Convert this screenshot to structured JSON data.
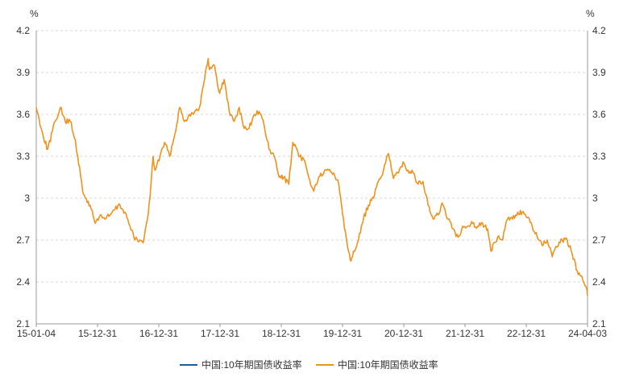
{
  "chart_data": {
    "type": "line",
    "title": "",
    "left_unit": "%",
    "right_unit": "%",
    "x_tick_labels": [
      "15-01-04",
      "15-12-31",
      "16-12-31",
      "17-12-31",
      "18-12-31",
      "19-12-31",
      "20-12-31",
      "21-12-31",
      "22-12-31",
      "24-04-03"
    ],
    "ylim": [
      2.1,
      4.2
    ],
    "y_tick_labels": [
      "2.1",
      "2.4",
      "2.7",
      "3",
      "3.3",
      "3.6",
      "3.9",
      "4.2"
    ],
    "grid": "horizontal dashed",
    "legend_position": "bottom-center",
    "legend": [
      {
        "label": "中国:10年期国债收益率",
        "color": "#1f5fa0"
      },
      {
        "label": "中国:10年期国债收益率",
        "color": "#f0921e"
      }
    ],
    "series": [
      {
        "name": "中国:10年期国债收益率",
        "color": "#f0921e",
        "x": [
          "2015-01-04",
          "2015-02-15",
          "2015-03-15",
          "2015-04-30",
          "2015-05-31",
          "2015-06-30",
          "2015-07-31",
          "2015-08-31",
          "2015-09-15",
          "2015-10-15",
          "2015-10-31",
          "2015-11-30",
          "2015-12-31",
          "2016-01-31",
          "2016-02-29",
          "2016-03-31",
          "2016-04-30",
          "2016-05-31",
          "2016-06-30",
          "2016-07-31",
          "2016-08-31",
          "2016-09-30",
          "2016-10-20",
          "2016-11-15",
          "2016-11-30",
          "2016-12-20",
          "2016-12-31",
          "2017-01-31",
          "2017-02-28",
          "2017-03-31",
          "2017-04-30",
          "2017-05-31",
          "2017-06-30",
          "2017-07-31",
          "2017-08-31",
          "2017-09-30",
          "2017-10-31",
          "2017-11-22",
          "2017-11-30",
          "2017-12-31",
          "2018-01-31",
          "2018-02-28",
          "2018-03-31",
          "2018-04-30",
          "2018-05-31",
          "2018-06-30",
          "2018-07-31",
          "2018-08-31",
          "2018-09-30",
          "2018-10-31",
          "2018-11-30",
          "2018-12-31",
          "2019-01-31",
          "2019-02-28",
          "2019-03-31",
          "2019-04-25",
          "2019-05-31",
          "2019-06-30",
          "2019-07-31",
          "2019-08-31",
          "2019-09-30",
          "2019-10-31",
          "2019-11-30",
          "2019-12-31",
          "2020-01-31",
          "2020-02-29",
          "2020-03-31",
          "2020-04-15",
          "2020-04-30",
          "2020-05-31",
          "2020-06-30",
          "2020-07-31",
          "2020-08-31",
          "2020-09-30",
          "2020-10-31",
          "2020-11-20",
          "2020-11-30",
          "2020-12-31",
          "2021-01-31",
          "2021-02-28",
          "2021-03-31",
          "2021-04-30",
          "2021-05-31",
          "2021-06-30",
          "2021-07-31",
          "2021-08-31",
          "2021-09-30",
          "2021-10-20",
          "2021-10-31",
          "2021-11-30",
          "2021-12-31",
          "2022-01-31",
          "2022-02-28",
          "2022-03-31",
          "2022-04-30",
          "2022-05-31",
          "2022-06-30",
          "2022-07-31",
          "2022-08-20",
          "2022-09-30",
          "2022-10-31",
          "2022-11-20",
          "2022-11-30",
          "2022-12-31",
          "2023-01-31",
          "2023-02-28",
          "2023-03-31",
          "2023-04-30",
          "2023-05-31",
          "2023-06-30",
          "2023-07-31",
          "2023-08-31",
          "2023-09-30",
          "2023-10-31",
          "2023-11-30",
          "2023-12-31",
          "2024-01-31",
          "2024-02-29",
          "2024-03-31",
          "2024-04-03"
        ],
        "y": [
          3.65,
          3.45,
          3.35,
          3.55,
          3.65,
          3.55,
          3.55,
          3.42,
          3.3,
          3.05,
          3.0,
          2.95,
          2.82,
          2.88,
          2.85,
          2.88,
          2.92,
          2.95,
          2.9,
          2.8,
          2.7,
          2.7,
          2.68,
          2.85,
          3.0,
          3.3,
          3.2,
          3.3,
          3.4,
          3.3,
          3.45,
          3.65,
          3.55,
          3.6,
          3.62,
          3.65,
          3.85,
          4.0,
          3.92,
          3.95,
          3.75,
          3.85,
          3.62,
          3.55,
          3.65,
          3.5,
          3.5,
          3.6,
          3.62,
          3.52,
          3.35,
          3.3,
          3.15,
          3.15,
          3.1,
          3.4,
          3.3,
          3.28,
          3.15,
          3.05,
          3.15,
          3.18,
          3.2,
          3.18,
          3.1,
          2.85,
          2.62,
          2.55,
          2.62,
          2.7,
          2.85,
          2.95,
          3.0,
          3.12,
          3.2,
          3.3,
          3.32,
          3.14,
          3.18,
          3.26,
          3.2,
          3.18,
          3.1,
          3.12,
          2.95,
          2.85,
          2.88,
          2.95,
          2.95,
          2.85,
          2.78,
          2.72,
          2.8,
          2.8,
          2.82,
          2.8,
          2.82,
          2.78,
          2.62,
          2.72,
          2.7,
          2.82,
          2.85,
          2.85,
          2.9,
          2.9,
          2.86,
          2.8,
          2.72,
          2.66,
          2.7,
          2.58,
          2.65,
          2.7,
          2.7,
          2.6,
          2.48,
          2.44,
          2.34,
          2.3
        ]
      }
    ]
  }
}
